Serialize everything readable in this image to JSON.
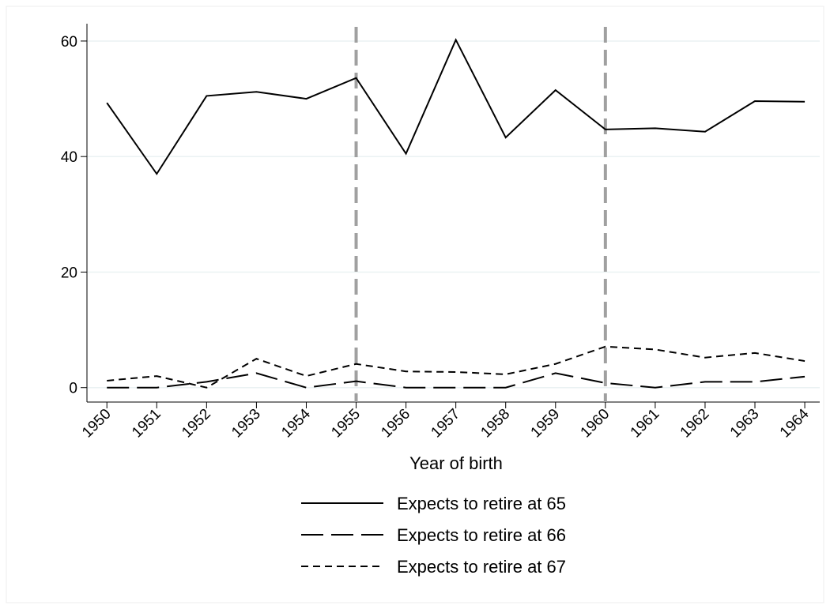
{
  "chart_data": {
    "type": "line",
    "x": [
      1950,
      1951,
      1952,
      1953,
      1954,
      1955,
      1956,
      1957,
      1958,
      1959,
      1960,
      1961,
      1962,
      1963,
      1964
    ],
    "series": [
      {
        "name": "Expects to retire at 65",
        "color": "#000000",
        "dash": "solid",
        "values": [
          49.3,
          37,
          50.5,
          51.2,
          50,
          53.6,
          40.5,
          60.2,
          43.3,
          51.5,
          44.7,
          44.9,
          44.3,
          49.6,
          49.5
        ]
      },
      {
        "name": "Expects to retire at 66",
        "color": "#000000",
        "dash": "longdash",
        "values": [
          0,
          0,
          1,
          2.5,
          0,
          1.1,
          0,
          0,
          0,
          2.5,
          0.8,
          0,
          1,
          1,
          1.9
        ]
      },
      {
        "name": "Expects to retire at 67",
        "color": "#000000",
        "dash": "dash",
        "values": [
          1.2,
          2,
          0,
          5,
          2,
          4.1,
          2.8,
          2.7,
          2.3,
          4.1,
          7.1,
          6.6,
          5.2,
          6,
          4.6
        ]
      }
    ],
    "x_label": "Year of birth",
    "xlim": [
      1949.6,
      1964.3
    ],
    "xticks": [
      1950,
      1951,
      1952,
      1953,
      1954,
      1955,
      1956,
      1957,
      1958,
      1959,
      1960,
      1961,
      1962,
      1963,
      1964
    ],
    "ylim": [
      -2.5,
      63
    ],
    "yticks": [
      0,
      20,
      40,
      60
    ],
    "grid": true,
    "reference_lines": [
      1955,
      1960
    ],
    "reference_color": "#a0a0a0",
    "legend": "bottom"
  }
}
